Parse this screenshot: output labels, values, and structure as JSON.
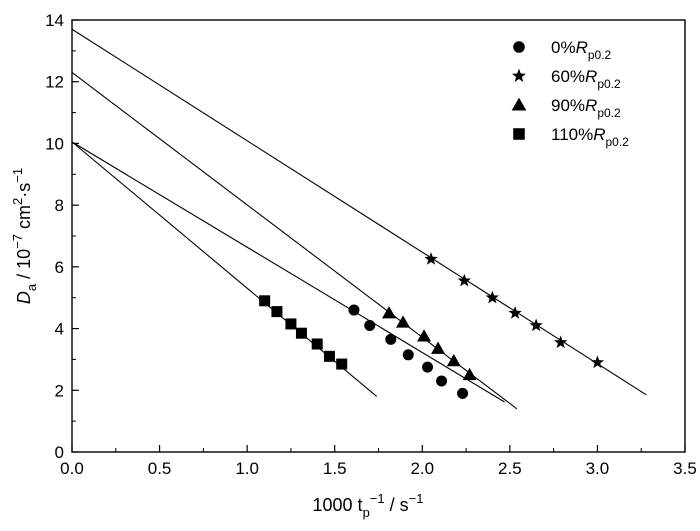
{
  "chart_data": {
    "type": "scatter",
    "title": "",
    "xlabel": {
      "main": "1000 t",
      "sub": "p",
      "sup": "−1",
      "tail": " / s",
      "tail_sup": "−1"
    },
    "ylabel": {
      "main": "D",
      "sub": "a",
      "mid": " / 10",
      "sup1": "−7",
      "mid2": " cm",
      "sup2": "2",
      "mid3": "·s",
      "sup3": "−1"
    },
    "xlim": [
      0,
      3.5
    ],
    "ylim": [
      0,
      14
    ],
    "x_ticks": [
      0.0,
      0.5,
      1.0,
      1.5,
      2.0,
      2.5,
      3.0,
      3.5
    ],
    "x_tick_labels": [
      "0.0",
      "0.5",
      "1.0",
      "1.5",
      "2.0",
      "2.5",
      "3.0",
      "3.5"
    ],
    "y_ticks": [
      0,
      2,
      4,
      6,
      8,
      10,
      12,
      14
    ],
    "y_tick_labels": [
      "0",
      "2",
      "4",
      "6",
      "8",
      "10",
      "12",
      "14"
    ],
    "legend_position": "top-right",
    "series": [
      {
        "name": "0%",
        "name_italic": "R",
        "name_sub": "p0.2",
        "marker": "circle",
        "x": [
          1.61,
          1.7,
          1.82,
          1.92,
          2.03,
          2.11,
          2.23
        ],
        "y": [
          4.6,
          4.1,
          3.65,
          3.15,
          2.75,
          2.3,
          1.9
        ],
        "fit": {
          "x": [
            0,
            2.47
          ],
          "y": [
            10.05,
            1.62
          ]
        }
      },
      {
        "name": "60%",
        "name_italic": "R",
        "name_sub": "p0.2",
        "marker": "star",
        "x": [
          2.05,
          2.24,
          2.4,
          2.53,
          2.65,
          2.79,
          3.0
        ],
        "y": [
          6.25,
          5.55,
          5.0,
          4.5,
          4.1,
          3.55,
          2.9
        ],
        "fit": {
          "x": [
            0,
            3.28
          ],
          "y": [
            13.7,
            1.85
          ]
        }
      },
      {
        "name": "90%",
        "name_italic": "R",
        "name_sub": "p0.2",
        "marker": "triangle",
        "x": [
          1.81,
          1.89,
          2.01,
          2.09,
          2.18,
          2.27
        ],
        "y": [
          4.5,
          4.2,
          3.75,
          3.35,
          2.95,
          2.5
        ],
        "fit": {
          "x": [
            0,
            2.54
          ],
          "y": [
            12.3,
            1.4
          ]
        }
      },
      {
        "name": "110%",
        "name_italic": "R",
        "name_sub": "p0.2",
        "marker": "square",
        "x": [
          1.1,
          1.17,
          1.25,
          1.31,
          1.4,
          1.47,
          1.54
        ],
        "y": [
          4.9,
          4.55,
          4.15,
          3.85,
          3.5,
          3.1,
          2.85
        ],
        "fit": {
          "x": [
            0,
            1.74
          ],
          "y": [
            10.05,
            1.8
          ]
        }
      }
    ]
  }
}
